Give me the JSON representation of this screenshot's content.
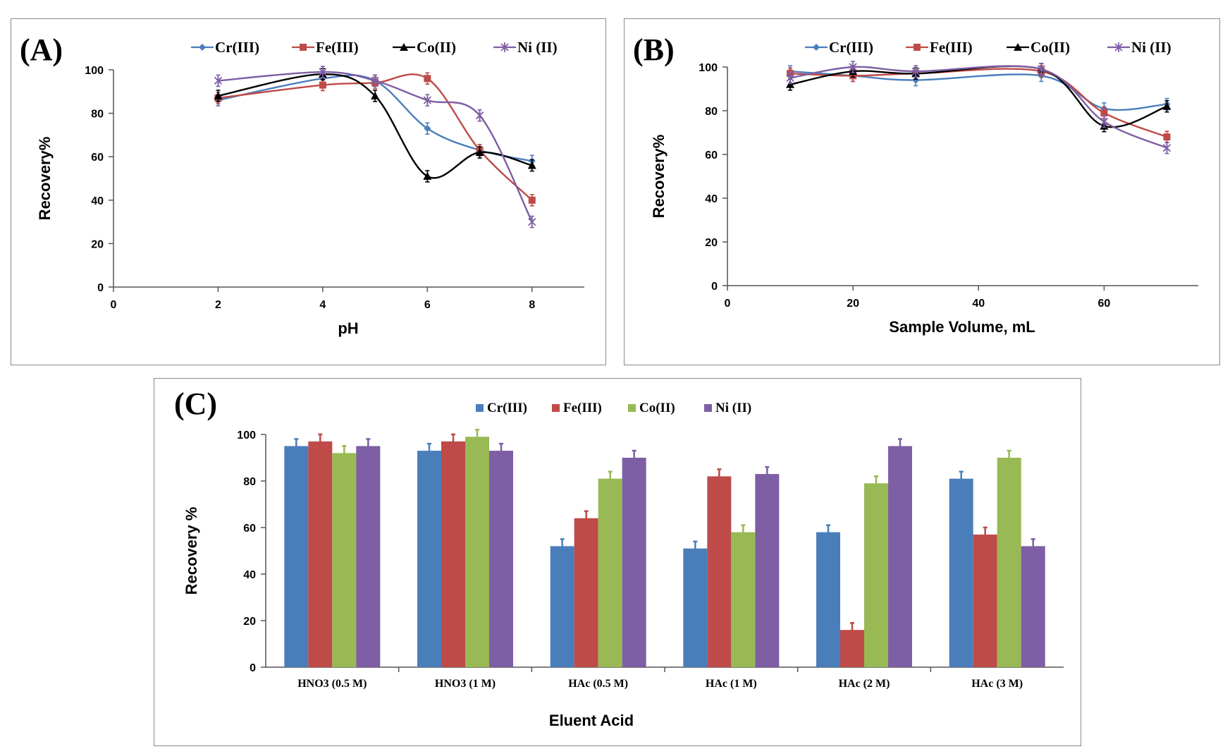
{
  "colors": {
    "Cr(III)": "#4a7ebb",
    "Fe(III)": "#be4b48",
    "Co(II)": "#000000",
    "Ni (II)": "#7e5ea4",
    "Co(II)_bar": "#98b954"
  },
  "chart_data": [
    {
      "type": "line",
      "label": "(A)",
      "xlabel": "pH",
      "ylabel": "Recovery%",
      "xlim": [
        0,
        9
      ],
      "ylim": [
        0,
        100
      ],
      "xticks": [
        "0",
        "2",
        "4",
        "6",
        "8"
      ],
      "yticks": [
        "0",
        "20",
        "40",
        "60",
        "80",
        "100"
      ],
      "legend": [
        "Cr(III)",
        "Fe(III)",
        "Co(II)",
        "Ni (II)"
      ],
      "x": [
        2,
        4,
        5,
        6,
        7,
        8
      ],
      "series": [
        {
          "name": "Cr(III)",
          "marker": "diamond",
          "values": [
            86,
            96,
            95,
            73,
            63,
            58
          ]
        },
        {
          "name": "Fe(III)",
          "marker": "square",
          "values": [
            87,
            93,
            94,
            96,
            63,
            40
          ]
        },
        {
          "name": "Co(II)",
          "marker": "triangle",
          "values": [
            88,
            98,
            88,
            51,
            62,
            56
          ]
        },
        {
          "name": "Ni (II)",
          "marker": "x",
          "values": [
            95,
            99,
            95,
            86,
            79,
            30
          ]
        }
      ]
    },
    {
      "type": "line",
      "label": "(B)",
      "xlabel": "Sample Volume, mL",
      "ylabel": "Recovery%",
      "xlim": [
        0,
        75
      ],
      "ylim": [
        0,
        100
      ],
      "xticks": [
        "0",
        "20",
        "40",
        "60"
      ],
      "yticks": [
        "0",
        "20",
        "40",
        "60",
        "80",
        "100"
      ],
      "legend": [
        "Cr(III)",
        "Fe(III)",
        "Co(II)",
        "Ni (II)"
      ],
      "x": [
        10,
        20,
        30,
        50,
        60,
        70
      ],
      "series": [
        {
          "name": "Cr(III)",
          "marker": "diamond",
          "values": [
            98,
            96,
            94,
            96,
            81,
            83
          ]
        },
        {
          "name": "Fe(III)",
          "marker": "square",
          "values": [
            97,
            96,
            97,
            98,
            79,
            68
          ]
        },
        {
          "name": "Co(II)",
          "marker": "triangle",
          "values": [
            92,
            98,
            97,
            99,
            73,
            82
          ]
        },
        {
          "name": "Ni (II)",
          "marker": "x",
          "values": [
            95,
            100,
            98,
            99,
            75,
            63
          ]
        }
      ]
    },
    {
      "type": "bar",
      "label": "(C)",
      "xlabel": "Eluent Acid",
      "ylabel": "Recovery %",
      "ylim": [
        0,
        100
      ],
      "yticks": [
        "0",
        "20",
        "40",
        "60",
        "80",
        "100"
      ],
      "legend": [
        "Cr(III)",
        "Fe(III)",
        "Co(II)",
        "Ni (II)"
      ],
      "categories": [
        "HNO3 (0.5 M)",
        "HNO3 (1 M)",
        "HAc (0.5 M)",
        "HAc (1 M)",
        "HAc (2 M)",
        "HAc (3 M)"
      ],
      "series": [
        {
          "name": "Cr(III)",
          "values": [
            95,
            93,
            52,
            51,
            58,
            81
          ]
        },
        {
          "name": "Fe(III)",
          "values": [
            97,
            97,
            64,
            82,
            16,
            57
          ]
        },
        {
          "name": "Co(II)",
          "values": [
            92,
            99,
            81,
            58,
            79,
            90
          ]
        },
        {
          "name": "Ni (II)",
          "values": [
            95,
            93,
            90,
            83,
            95,
            52
          ]
        }
      ]
    }
  ]
}
